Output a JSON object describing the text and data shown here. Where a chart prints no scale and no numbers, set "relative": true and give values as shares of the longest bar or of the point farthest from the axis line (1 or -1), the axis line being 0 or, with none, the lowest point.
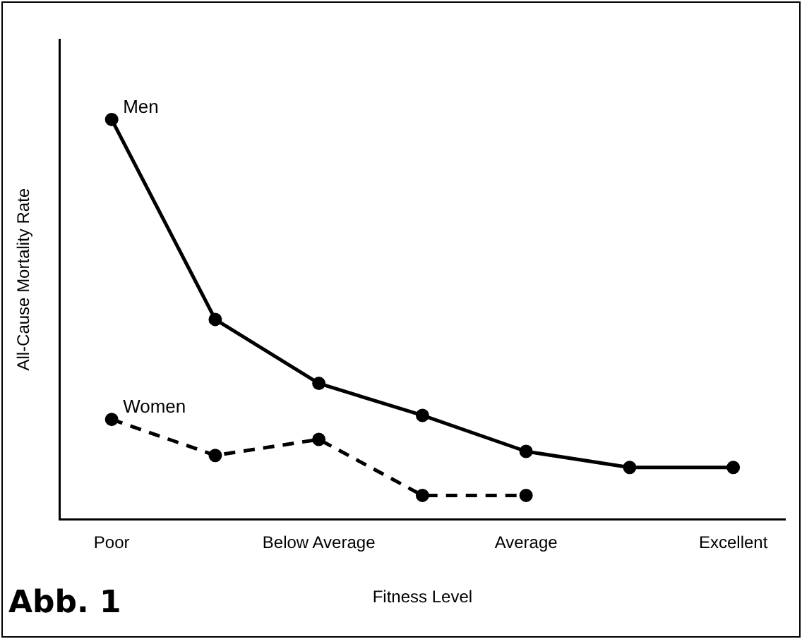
{
  "chart_data": {
    "type": "line",
    "xlabel": "Fitness Level",
    "ylabel": "All-Cause Mortality Rate",
    "relative": true,
    "grid": false,
    "legend": false,
    "marker": "circle",
    "categories": [
      "Poor",
      null,
      "Below Average",
      null,
      "Average",
      null,
      "Excellent"
    ],
    "series": [
      {
        "name": "Men",
        "color": "#000000",
        "line_style": "solid",
        "values": [
          1,
          0.5,
          0.34,
          0.26,
          0.17,
          0.13,
          0.13
        ]
      },
      {
        "name": "Women",
        "color": "#000000",
        "line_style": "dashed",
        "values": [
          0.25,
          0.16,
          0.2,
          0.06,
          0.06,
          null,
          null
        ]
      }
    ],
    "annotations": [
      "Abb. 1"
    ]
  }
}
